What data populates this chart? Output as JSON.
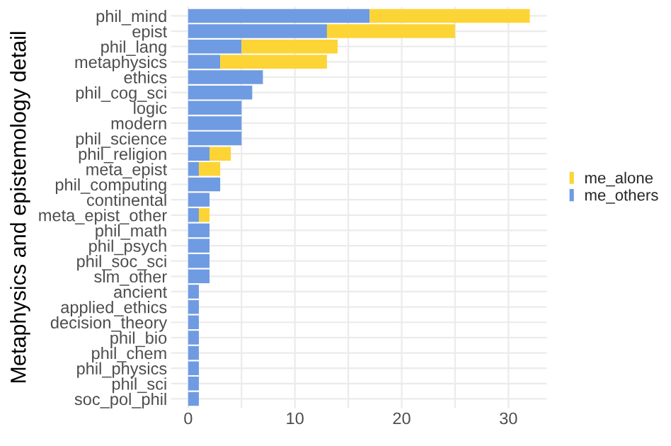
{
  "chart_data": {
    "type": "bar",
    "orientation": "horizontal",
    "stacked": true,
    "ylabel": "Metaphysics and epistemology detail",
    "categories": [
      "phil_mind",
      "epist",
      "phil_lang",
      "metaphysics",
      "ethics",
      "phil_cog_sci",
      "logic",
      "modern",
      "phil_science",
      "phil_religion",
      "meta_epist",
      "phil_computing",
      "continental",
      "meta_epist_other",
      "phil_math",
      "phil_psych",
      "phil_soc_sci",
      "slm_other",
      "ancient",
      "applied_ethics",
      "decision_theory",
      "phil_bio",
      "phil_chem",
      "phil_physics",
      "phil_sci",
      "soc_pol_phil"
    ],
    "series": [
      {
        "name": "me_others",
        "color": "#6f9be2",
        "values": [
          17,
          13,
          5,
          3,
          7,
          6,
          5,
          5,
          5,
          2,
          1,
          3,
          2,
          1,
          2,
          2,
          2,
          2,
          1,
          1,
          1,
          1,
          1,
          1,
          1,
          1
        ]
      },
      {
        "name": "me_alone",
        "color": "#fdd435",
        "values": [
          15,
          12,
          9,
          10,
          0,
          0,
          0,
          0,
          0,
          2,
          2,
          0,
          0,
          1,
          0,
          0,
          0,
          0,
          0,
          0,
          0,
          0,
          0,
          0,
          0,
          0
        ]
      }
    ],
    "xlim": [
      -1.6,
      33.6
    ],
    "xticks": [
      0,
      {
        "value": 5,
        "label": null
      },
      10,
      {
        "value": 15,
        "label": null
      },
      20,
      {
        "value": 25,
        "label": null
      },
      30
    ],
    "grid": true,
    "legend": "right"
  }
}
